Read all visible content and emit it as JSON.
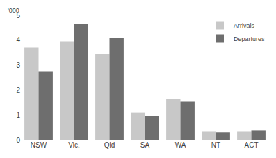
{
  "chart_data": {
    "type": "bar",
    "categories": [
      "NSW",
      "Vic.",
      "Qld",
      "SA",
      "WA",
      "NT",
      "ACT"
    ],
    "series": [
      {
        "name": "Arrivals",
        "color": "#c8c8c8",
        "values": [
          3.7,
          3.95,
          3.45,
          1.1,
          1.65,
          0.35,
          0.35
        ]
      },
      {
        "name": "Departures",
        "color": "#6e6e6e",
        "values": [
          2.75,
          4.65,
          4.1,
          0.95,
          1.55,
          0.3,
          0.38
        ]
      }
    ],
    "ylabel": "'000",
    "ylim": [
      0,
      5
    ],
    "yticks": [
      0,
      1,
      2,
      3,
      4,
      5
    ],
    "grid": false,
    "legend": "upper right"
  }
}
